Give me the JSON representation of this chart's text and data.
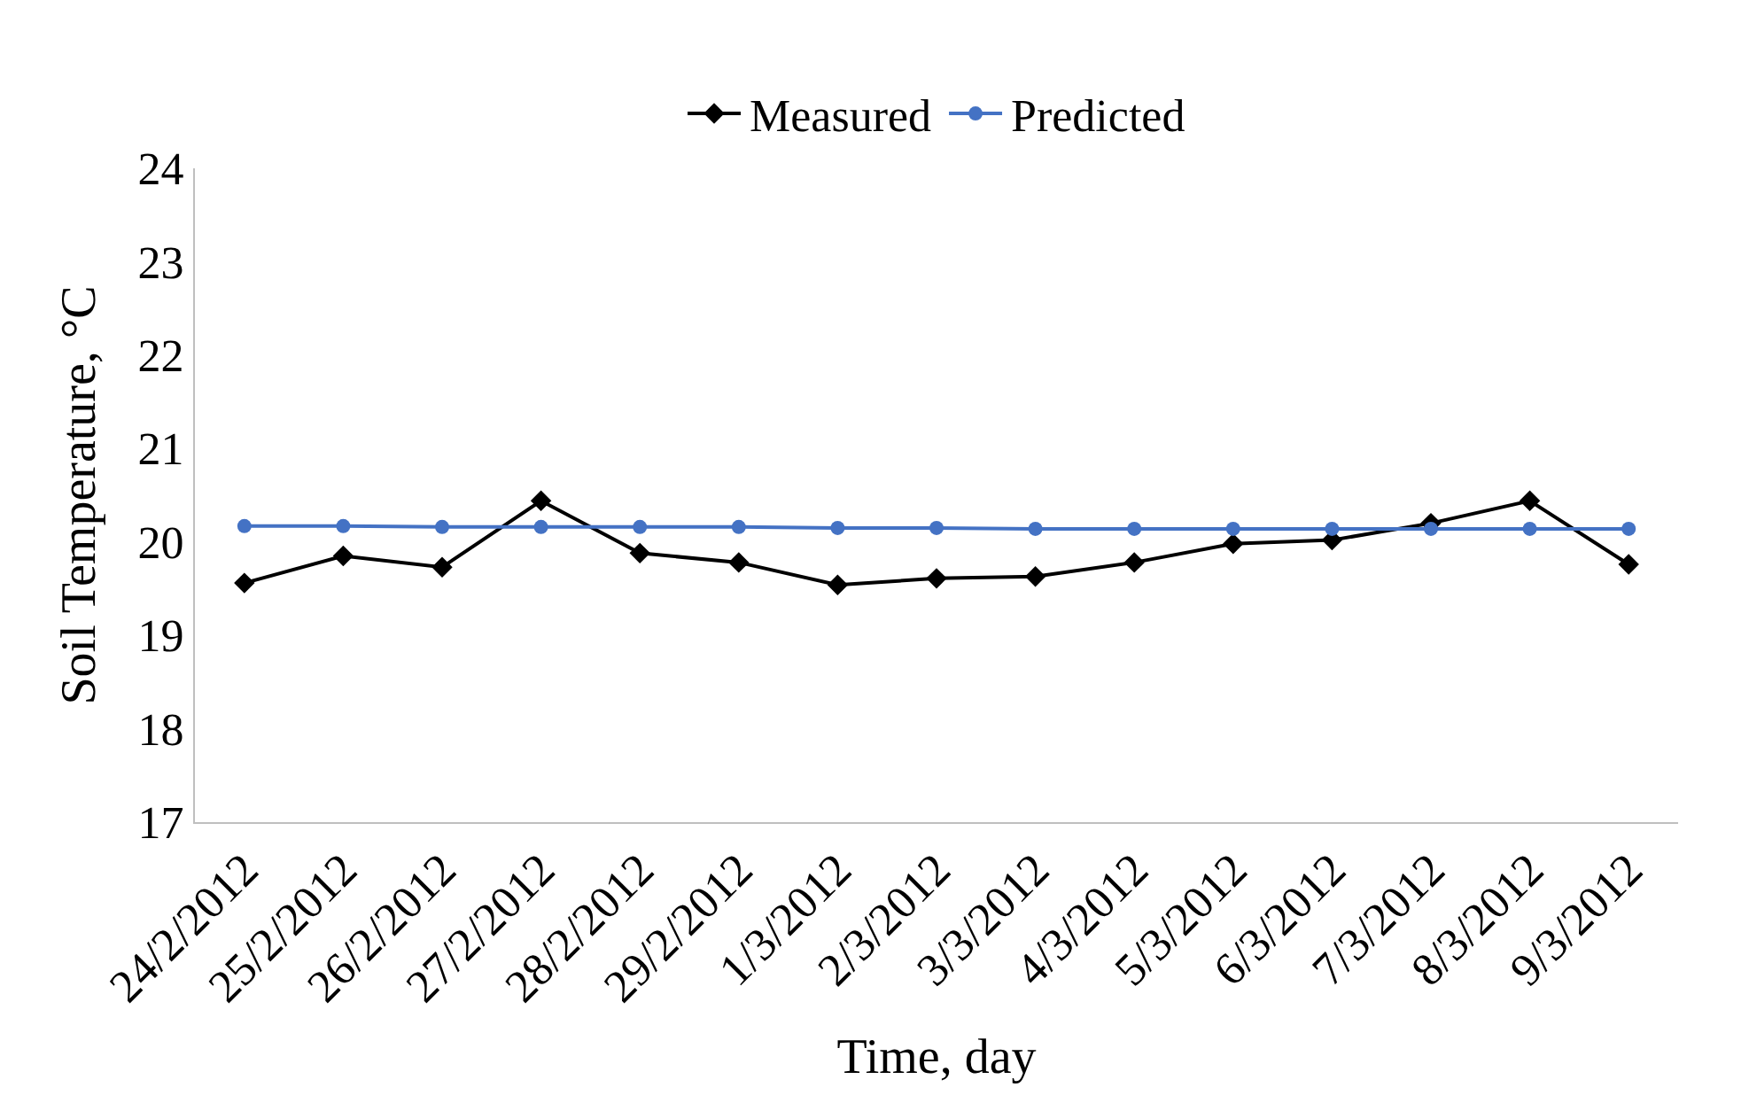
{
  "chart_data": {
    "type": "line",
    "xlabel": "Time, day",
    "ylabel": "Soil Temperature, °C",
    "categories": [
      "24/2/2012",
      "25/2/2012",
      "26/2/2012",
      "27/2/2012",
      "28/2/2012",
      "29/2/2012",
      "1/3/2012",
      "2/3/2012",
      "3/3/2012",
      "4/3/2012",
      "5/3/2012",
      "6/3/2012",
      "7/3/2012",
      "8/3/2012",
      "9/3/2012"
    ],
    "series": [
      {
        "name": "Measured",
        "color": "#000000",
        "marker": "diamond",
        "values": [
          19.56,
          19.85,
          19.73,
          20.44,
          19.88,
          19.78,
          19.54,
          19.61,
          19.63,
          19.78,
          19.98,
          20.02,
          20.2,
          20.44,
          19.76
        ]
      },
      {
        "name": "Predicted",
        "color": "#4472c4",
        "marker": "circle",
        "values": [
          20.17,
          20.17,
          20.16,
          20.16,
          20.16,
          20.16,
          20.15,
          20.15,
          20.14,
          20.14,
          20.14,
          20.14,
          20.14,
          20.14,
          20.14
        ]
      }
    ],
    "ylim": [
      17,
      24
    ],
    "yticks": [
      17,
      18,
      19,
      20,
      21,
      22,
      23,
      24
    ],
    "legend": "top",
    "line_style": "solid"
  }
}
